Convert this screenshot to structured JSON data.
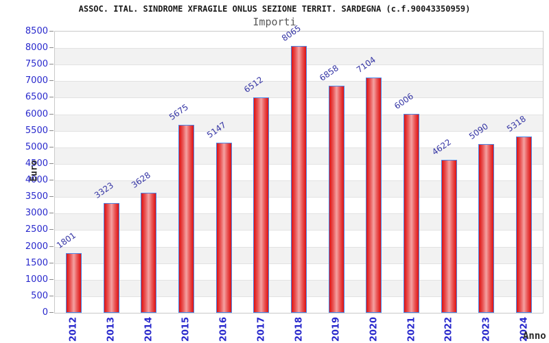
{
  "header": {
    "title": "ASSOC. ITAL. SINDROME XFRAGILE ONLUS SEZIONE TERRIT. SARDEGNA (c.f.90043350959)",
    "subtitle": "Importi"
  },
  "chart_data": {
    "type": "bar",
    "title": "ASSOC. ITAL. SINDROME XFRAGILE ONLUS SEZIONE TERRIT. SARDEGNA (c.f.90043350959)",
    "subtitle": "Importi",
    "categories": [
      "2012",
      "2013",
      "2014",
      "2015",
      "2016",
      "2017",
      "2018",
      "2019",
      "2020",
      "2021",
      "2022",
      "2023",
      "2024"
    ],
    "values": [
      1801,
      3323,
      3628,
      5675,
      5147,
      6512,
      8065,
      6858,
      7104,
      6006,
      4622,
      5090,
      5318
    ],
    "xlabel": "Anno",
    "ylabel": "Euro",
    "ylim": [
      0,
      8500
    ],
    "ytick_step": 500,
    "grid": true,
    "legend_position": "none",
    "value_labels_shown": true,
    "colors": {
      "bar_edge_fill": "#de1111",
      "bar_center_fill": "#f4a2a2",
      "bar_border": "#4a86e8",
      "axis_tick_text": "#2828cc",
      "value_label_text": "#3434a4",
      "band_stripe": "#f2f2f2",
      "gridline": "#e2e2e2",
      "plot_border": "#c9c9c9",
      "title_text": "#1a1a1a",
      "subtitle_text": "#585858",
      "axis_title_text": "#2b2b2b"
    }
  }
}
